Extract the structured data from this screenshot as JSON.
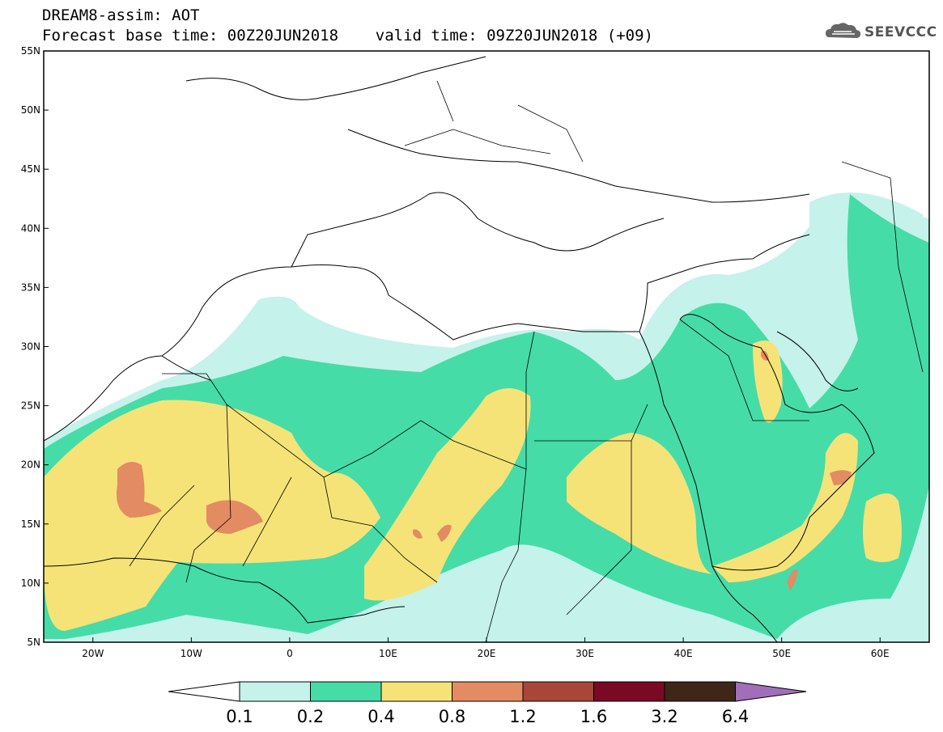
{
  "header": {
    "title_line1": "DREAM8-assim: AOT",
    "title_line2": "Forecast base time: 00Z20JUN2018    valid time: 09Z20JUN2018 (+09)"
  },
  "logo": {
    "text": "SEEVCCC",
    "icon": "cloud-logo-icon"
  },
  "map": {
    "lat_ticks": [
      "55N",
      "50N",
      "45N",
      "40N",
      "35N",
      "30N",
      "25N",
      "20N",
      "15N",
      "10N",
      "5N"
    ],
    "lon_ticks": [
      "20W",
      "10W",
      "0",
      "10E",
      "20E",
      "30E",
      "40E",
      "50E",
      "60E"
    ],
    "lat_range": [
      5,
      55
    ],
    "lon_range": [
      -25,
      65
    ]
  },
  "colorbar": {
    "labels": [
      "0.1",
      "0.2",
      "0.4",
      "0.8",
      "1.2",
      "1.6",
      "3.2",
      "6.4"
    ],
    "colors": [
      "#c5f2ea",
      "#45dca8",
      "#f5e378",
      "#e38b63",
      "#a84638",
      "#7a0a24",
      "#3e2618"
    ],
    "under_color": "#ffffff",
    "over_color": "#a16eba"
  }
}
